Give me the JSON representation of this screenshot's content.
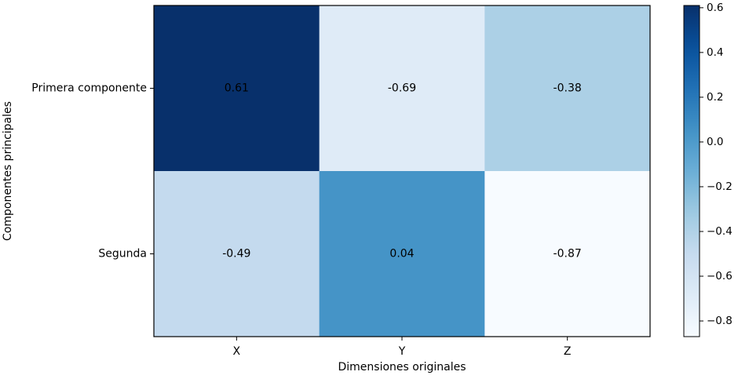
{
  "chart_data": {
    "type": "heatmap",
    "title": "",
    "xlabel": "Dimensiones originales",
    "ylabel": "Componentes principales",
    "x_categories": [
      "X",
      "Y",
      "Z"
    ],
    "y_categories": [
      "Primera componente",
      "Segunda"
    ],
    "values": [
      [
        0.61,
        -0.69,
        -0.38
      ],
      [
        -0.49,
        0.04,
        -0.87
      ]
    ],
    "value_labels": [
      [
        "0.61",
        "-0.69",
        "-0.38"
      ],
      [
        "-0.49",
        "0.04",
        "-0.87"
      ]
    ],
    "colormap": "Blues",
    "color_range": [
      -0.87,
      0.61
    ],
    "colorbar": {
      "ticks": [
        0.6,
        0.4,
        0.2,
        0.0,
        -0.2,
        -0.4,
        -0.6,
        -0.8
      ],
      "tick_labels": [
        "0.6",
        "0.4",
        "0.2",
        "0.0",
        "−0.2",
        "−0.4",
        "−0.6",
        "−0.8"
      ]
    },
    "grid": false,
    "legend": "none"
  }
}
